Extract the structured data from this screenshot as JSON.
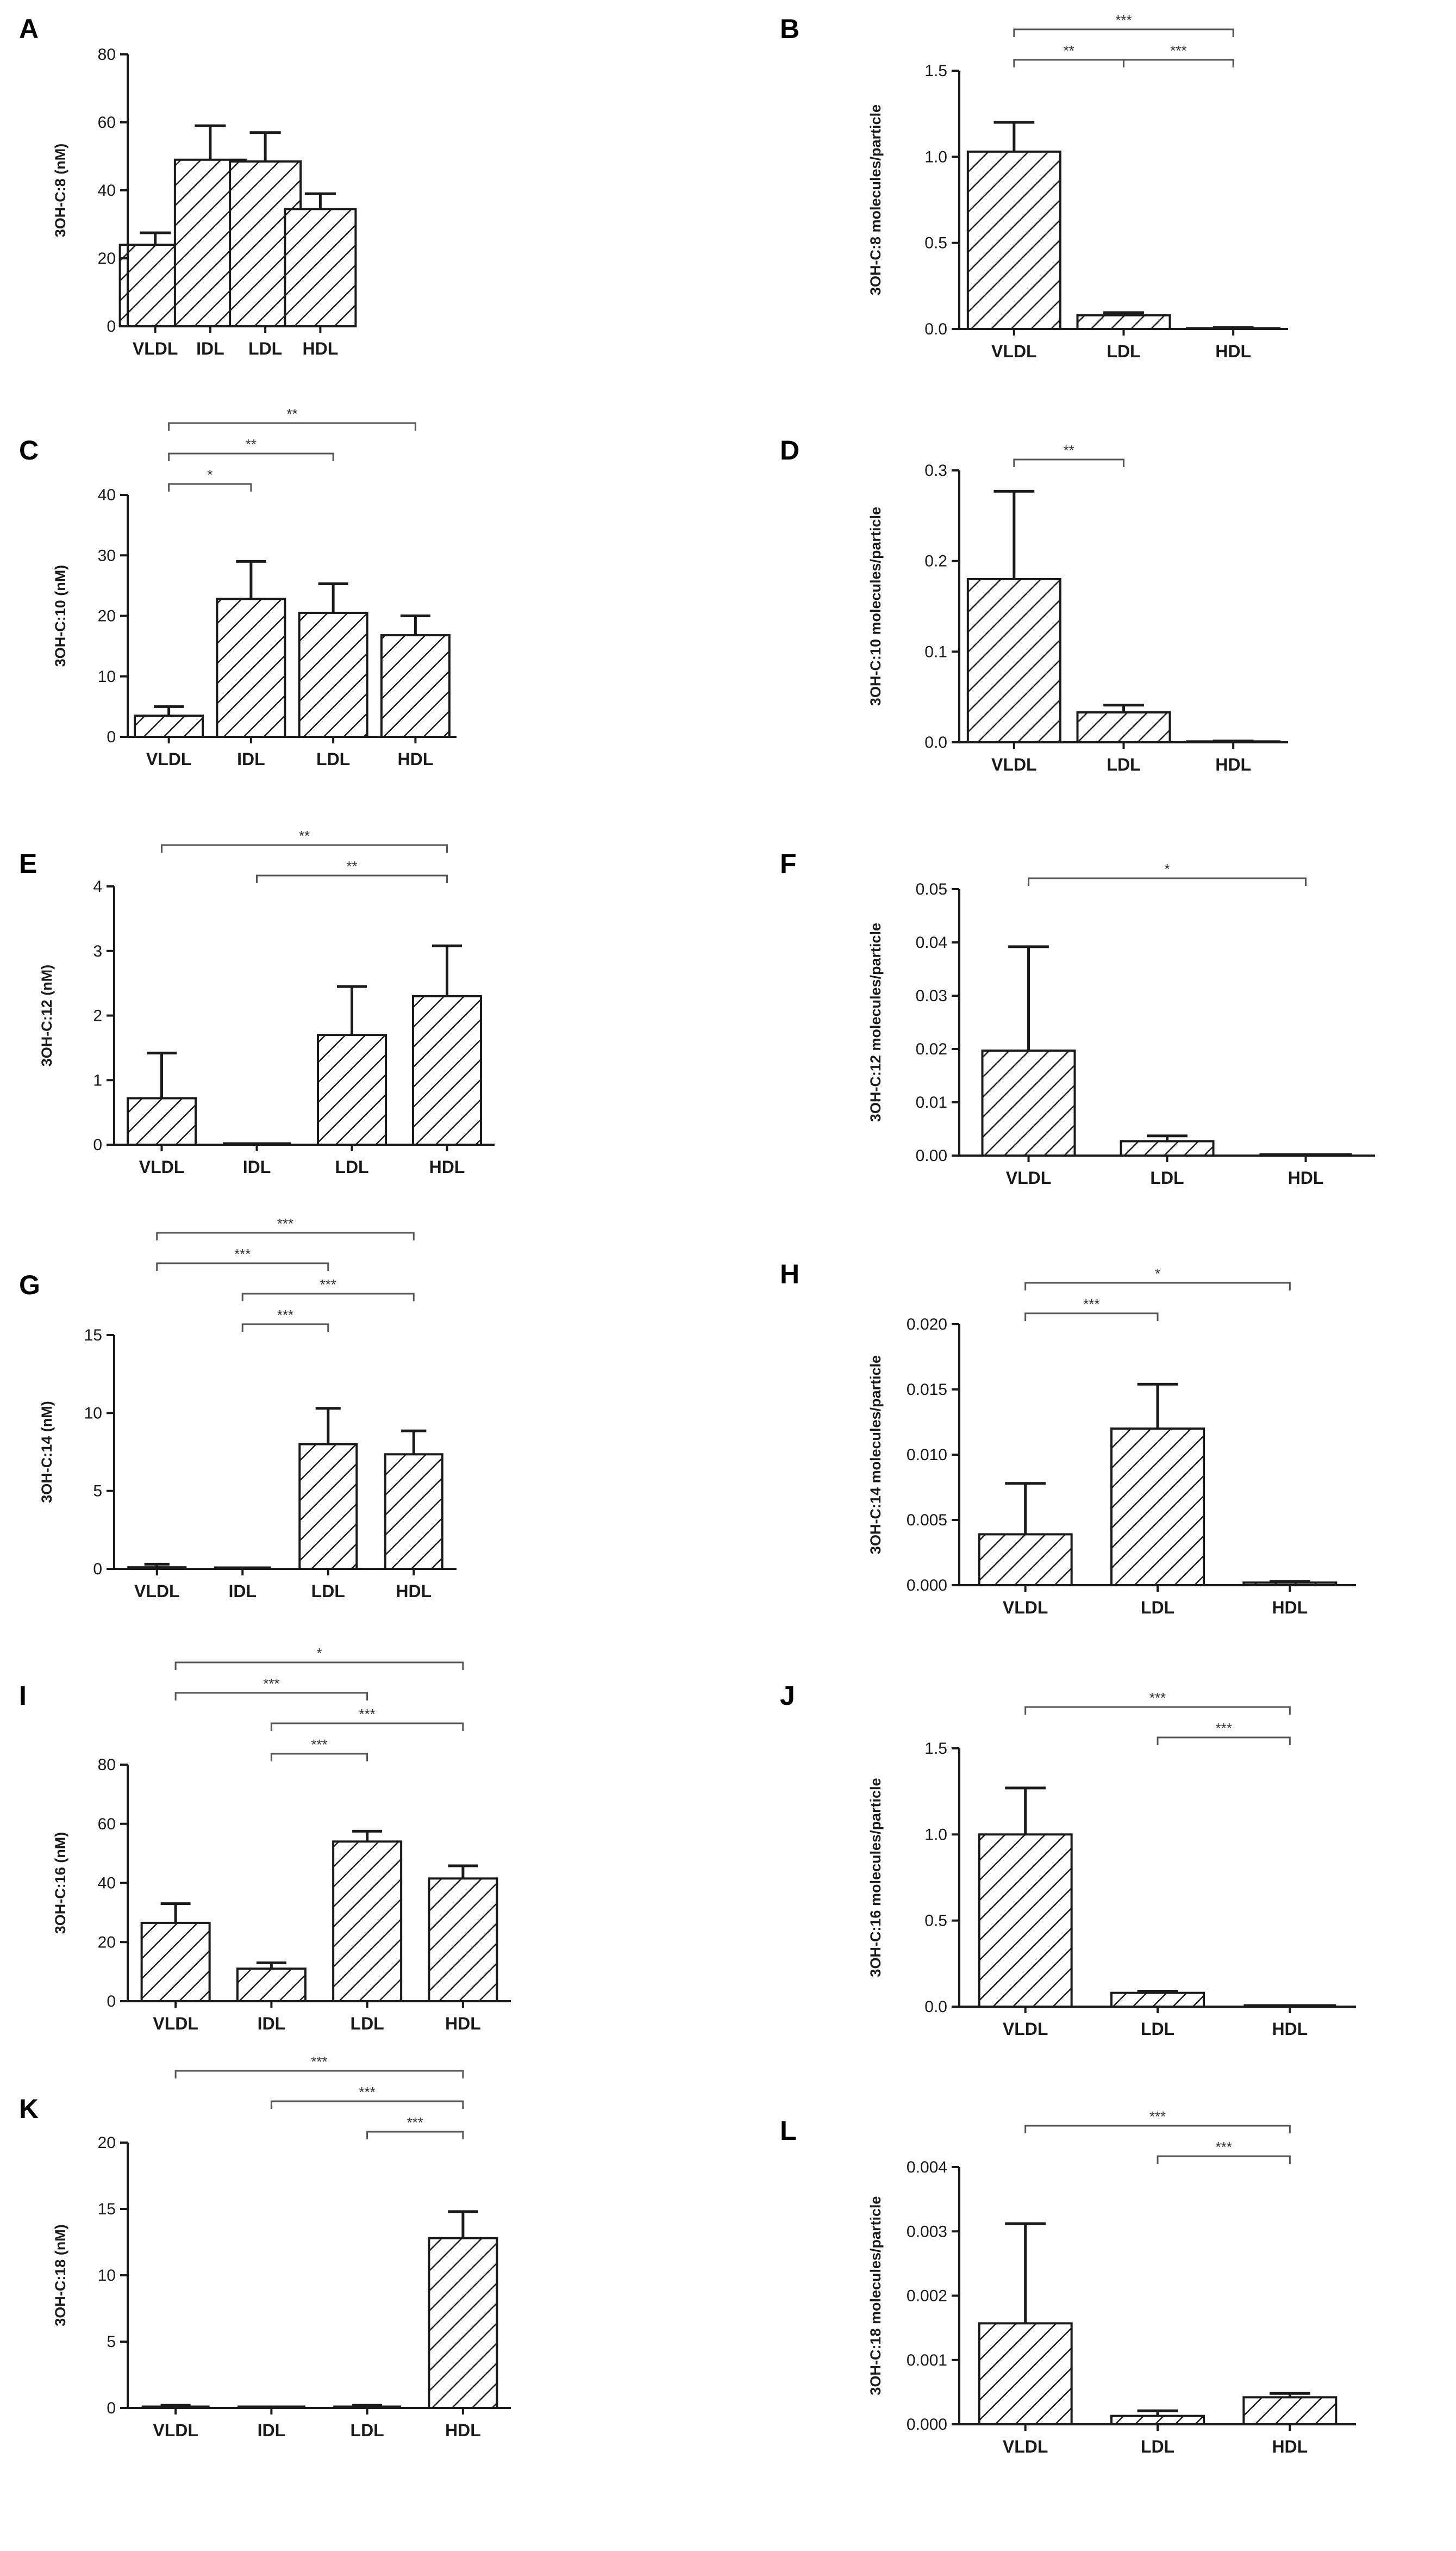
{
  "chart_data": [
    {
      "panel": "A",
      "type": "bar",
      "ylabel": "3OH-C:8 (nM)",
      "ylim": [
        0,
        80
      ],
      "yticks": [
        "0",
        "20",
        "40",
        "60",
        "80"
      ],
      "ytick_values": [
        0,
        20,
        40,
        60,
        80
      ],
      "categories": [
        "VLDL",
        "IDL",
        "LDL",
        "HDL"
      ],
      "values": [
        24,
        49,
        48.5,
        34.5
      ],
      "errors": [
        3.5,
        10,
        8.5,
        4.5
      ],
      "significance": []
    },
    {
      "panel": "B",
      "type": "bar",
      "ylabel": "3OH-C:8 molecules/particle",
      "ylim": [
        0,
        1.5
      ],
      "yticks": [
        "0.0",
        "0.5",
        "1.0",
        "1.5"
      ],
      "ytick_values": [
        0,
        0.5,
        1.0,
        1.5
      ],
      "categories": [
        "VLDL",
        "LDL",
        "HDL"
      ],
      "values": [
        1.03,
        0.08,
        0.005
      ],
      "errors": [
        0.17,
        0.015,
        0.003
      ],
      "significance": [
        {
          "from": 0,
          "to": 1,
          "label": "**",
          "level": 0
        },
        {
          "from": 1,
          "to": 2,
          "label": "***",
          "level": 0
        },
        {
          "from": 0,
          "to": 2,
          "label": "***",
          "level": 1
        }
      ]
    },
    {
      "panel": "C",
      "type": "bar",
      "ylabel": "3OH-C:10 (nM)",
      "ylim": [
        0,
        40
      ],
      "yticks": [
        "0",
        "10",
        "20",
        "30",
        "40"
      ],
      "ytick_values": [
        0,
        10,
        20,
        30,
        40
      ],
      "categories": [
        "VLDL",
        "IDL",
        "LDL",
        "HDL"
      ],
      "values": [
        3.5,
        22.8,
        20.5,
        16.8
      ],
      "errors": [
        1.5,
        6.2,
        4.8,
        3.2
      ],
      "significance": [
        {
          "from": 0,
          "to": 1,
          "label": "*",
          "level": 0
        },
        {
          "from": 0,
          "to": 2,
          "label": "**",
          "level": 1
        },
        {
          "from": 0,
          "to": 3,
          "label": "**",
          "level": 2
        }
      ]
    },
    {
      "panel": "D",
      "type": "bar",
      "ylabel": "3OH-C:10 molecules/particle",
      "ylim": [
        0,
        0.3
      ],
      "yticks": [
        "0.0",
        "0.1",
        "0.2",
        "0.3"
      ],
      "ytick_values": [
        0,
        0.1,
        0.2,
        0.3
      ],
      "categories": [
        "VLDL",
        "LDL",
        "HDL"
      ],
      "values": [
        0.18,
        0.033,
        0.001
      ],
      "errors": [
        0.097,
        0.008,
        0.0005
      ],
      "significance": [
        {
          "from": 0,
          "to": 1,
          "label": "**",
          "level": 0
        }
      ]
    },
    {
      "panel": "E",
      "type": "bar",
      "ylabel": "3OH-C:12 (nM)",
      "ylim": [
        0,
        4
      ],
      "yticks": [
        "0",
        "1",
        "2",
        "3",
        "4"
      ],
      "ytick_values": [
        0,
        1,
        2,
        3,
        4
      ],
      "categories": [
        "VLDL",
        "IDL",
        "LDL",
        "HDL"
      ],
      "values": [
        0.72,
        0,
        1.7,
        2.3
      ],
      "errors": [
        0.7,
        0,
        0.75,
        0.78
      ],
      "significance": [
        {
          "from": 1,
          "to": 3,
          "label": "**",
          "level": 0
        },
        {
          "from": 0,
          "to": 3,
          "label": "**",
          "level": 1
        }
      ]
    },
    {
      "panel": "F",
      "type": "bar",
      "ylabel": "3OH-C:12 molecules/particle",
      "ylim": [
        0,
        0.05
      ],
      "yticks": [
        "0.00",
        "0.01",
        "0.02",
        "0.03",
        "0.04",
        "0.05"
      ],
      "ytick_values": [
        0,
        0.01,
        0.02,
        0.03,
        0.04,
        0.05
      ],
      "categories": [
        "VLDL",
        "LDL",
        "HDL"
      ],
      "values": [
        0.0197,
        0.0027,
        0
      ],
      "errors": [
        0.0195,
        0.001,
        0
      ],
      "significance": [
        {
          "from": 0,
          "to": 2,
          "label": "*",
          "level": 0
        }
      ]
    },
    {
      "panel": "G",
      "type": "bar",
      "ylabel": "3OH-C:14 (nM)",
      "ylim": [
        0,
        15
      ],
      "yticks": [
        "0",
        "5",
        "10",
        "15"
      ],
      "ytick_values": [
        0,
        5,
        10,
        15
      ],
      "categories": [
        "VLDL",
        "IDL",
        "LDL",
        "HDL"
      ],
      "values": [
        0.1,
        0,
        8.0,
        7.35
      ],
      "errors": [
        0.2,
        0,
        2.3,
        1.5
      ],
      "significance": [
        {
          "from": 1,
          "to": 2,
          "label": "***",
          "level": 0
        },
        {
          "from": 1,
          "to": 3,
          "label": "***",
          "level": 1
        },
        {
          "from": 0,
          "to": 2,
          "label": "***",
          "level": 2
        },
        {
          "from": 0,
          "to": 3,
          "label": "***",
          "level": 3
        }
      ]
    },
    {
      "panel": "H",
      "type": "bar",
      "ylabel": "3OH-C:14 molecules/particle",
      "ylim": [
        0,
        0.02
      ],
      "yticks": [
        "0.000",
        "0.005",
        "0.010",
        "0.015",
        "0.020"
      ],
      "ytick_values": [
        0,
        0.005,
        0.01,
        0.015,
        0.02
      ],
      "categories": [
        "VLDL",
        "LDL",
        "HDL"
      ],
      "values": [
        0.0039,
        0.012,
        0.0002
      ],
      "errors": [
        0.0039,
        0.0034,
        0.0001
      ],
      "significance": [
        {
          "from": 0,
          "to": 1,
          "label": "***",
          "level": 0
        },
        {
          "from": 0,
          "to": 2,
          "label": "*",
          "level": 1
        }
      ]
    },
    {
      "panel": "I",
      "type": "bar",
      "ylabel": "3OH-C:16 (nM)",
      "ylim": [
        0,
        80
      ],
      "yticks": [
        "0",
        "20",
        "40",
        "60",
        "80"
      ],
      "ytick_values": [
        0,
        20,
        40,
        60,
        80
      ],
      "categories": [
        "VLDL",
        "IDL",
        "LDL",
        "HDL"
      ],
      "values": [
        26.5,
        11,
        54,
        41.5
      ],
      "errors": [
        6.5,
        2,
        3.5,
        4.3
      ],
      "significance": [
        {
          "from": 1,
          "to": 2,
          "label": "***",
          "level": 0
        },
        {
          "from": 1,
          "to": 3,
          "label": "***",
          "level": 1
        },
        {
          "from": 0,
          "to": 2,
          "label": "***",
          "level": 2
        },
        {
          "from": 0,
          "to": 3,
          "label": "*",
          "level": 3
        }
      ]
    },
    {
      "panel": "J",
      "type": "bar",
      "ylabel": "3OH-C:16 molecules/particle",
      "ylim": [
        0,
        1.5
      ],
      "yticks": [
        "0.0",
        "0.5",
        "1.0",
        "1.5"
      ],
      "ytick_values": [
        0,
        0.5,
        1.0,
        1.5
      ],
      "categories": [
        "VLDL",
        "LDL",
        "HDL"
      ],
      "values": [
        1.0,
        0.08,
        0.003
      ],
      "errors": [
        0.27,
        0.01,
        0.002
      ],
      "significance": [
        {
          "from": 1,
          "to": 2,
          "label": "***",
          "level": 0
        },
        {
          "from": 0,
          "to": 2,
          "label": "***",
          "level": 1
        }
      ]
    },
    {
      "panel": "K",
      "type": "bar",
      "ylabel": "3OH-C:18 (nM)",
      "ylim": [
        0,
        20
      ],
      "yticks": [
        "0",
        "5",
        "10",
        "15",
        "20"
      ],
      "ytick_values": [
        0,
        5,
        10,
        15,
        20
      ],
      "categories": [
        "VLDL",
        "IDL",
        "LDL",
        "HDL"
      ],
      "values": [
        0.05,
        0.02,
        0.05,
        12.8
      ],
      "errors": [
        0.15,
        0.05,
        0.15,
        2.0
      ],
      "significance": [
        {
          "from": 2,
          "to": 3,
          "label": "***",
          "level": 0
        },
        {
          "from": 1,
          "to": 3,
          "label": "***",
          "level": 1
        },
        {
          "from": 0,
          "to": 3,
          "label": "***",
          "level": 2
        }
      ]
    },
    {
      "panel": "L",
      "type": "bar",
      "ylabel": "3OH-C:18 molecules/particle",
      "ylim": [
        0,
        0.004
      ],
      "yticks": [
        "0.000",
        "0.001",
        "0.002",
        "0.003",
        "0.004"
      ],
      "ytick_values": [
        0,
        0.001,
        0.002,
        0.003,
        0.004
      ],
      "categories": [
        "VLDL",
        "LDL",
        "HDL"
      ],
      "values": [
        0.00157,
        0.00013,
        0.00042
      ],
      "errors": [
        0.00155,
        8e-05,
        6e-05
      ],
      "significance": [
        {
          "from": 1,
          "to": 2,
          "label": "***",
          "level": 0
        },
        {
          "from": 0,
          "to": 2,
          "label": "***",
          "level": 1
        }
      ]
    }
  ]
}
